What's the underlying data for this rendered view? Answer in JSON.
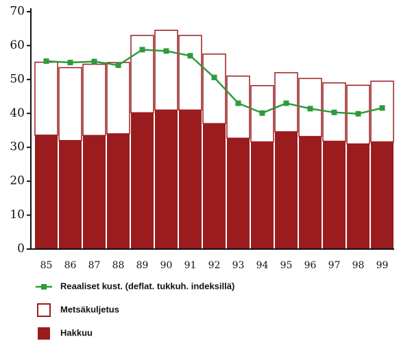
{
  "chart_data": {
    "type": "bar",
    "stacked": true,
    "categories": [
      "85",
      "86",
      "87",
      "88",
      "89",
      "90",
      "91",
      "92",
      "93",
      "94",
      "95",
      "96",
      "97",
      "98",
      "99"
    ],
    "series": [
      {
        "name": "Reaaliset kust. (deflat. tukkuh. indeksillä)",
        "type": "line",
        "color": "#2e9a3a",
        "values": [
          55.4,
          55,
          55.3,
          54.2,
          58.8,
          58.4,
          57,
          50.6,
          43,
          40.1,
          43,
          41.4,
          40.3,
          39.9,
          41.6
        ]
      },
      {
        "name": "Metsäkuljetus",
        "type": "bar",
        "color": "#ffffff",
        "stroke": "#9b1c1f",
        "values": [
          21.5,
          21.5,
          21,
          21,
          22.8,
          23.5,
          22,
          20.5,
          18.3,
          16.6,
          17.4,
          17.1,
          17.2,
          17.3,
          17.9
        ]
      },
      {
        "name": "Hakkuu",
        "type": "bar",
        "color": "#9b1c1f",
        "values": [
          33.6,
          32,
          33.5,
          34,
          40.2,
          41,
          41,
          37,
          32.7,
          31.6,
          34.6,
          33.2,
          31.8,
          31,
          31.6
        ]
      }
    ],
    "ylim": [
      0,
      70
    ],
    "yticks": [
      0,
      10,
      20,
      30,
      40,
      50,
      60,
      70
    ],
    "grid": false
  }
}
